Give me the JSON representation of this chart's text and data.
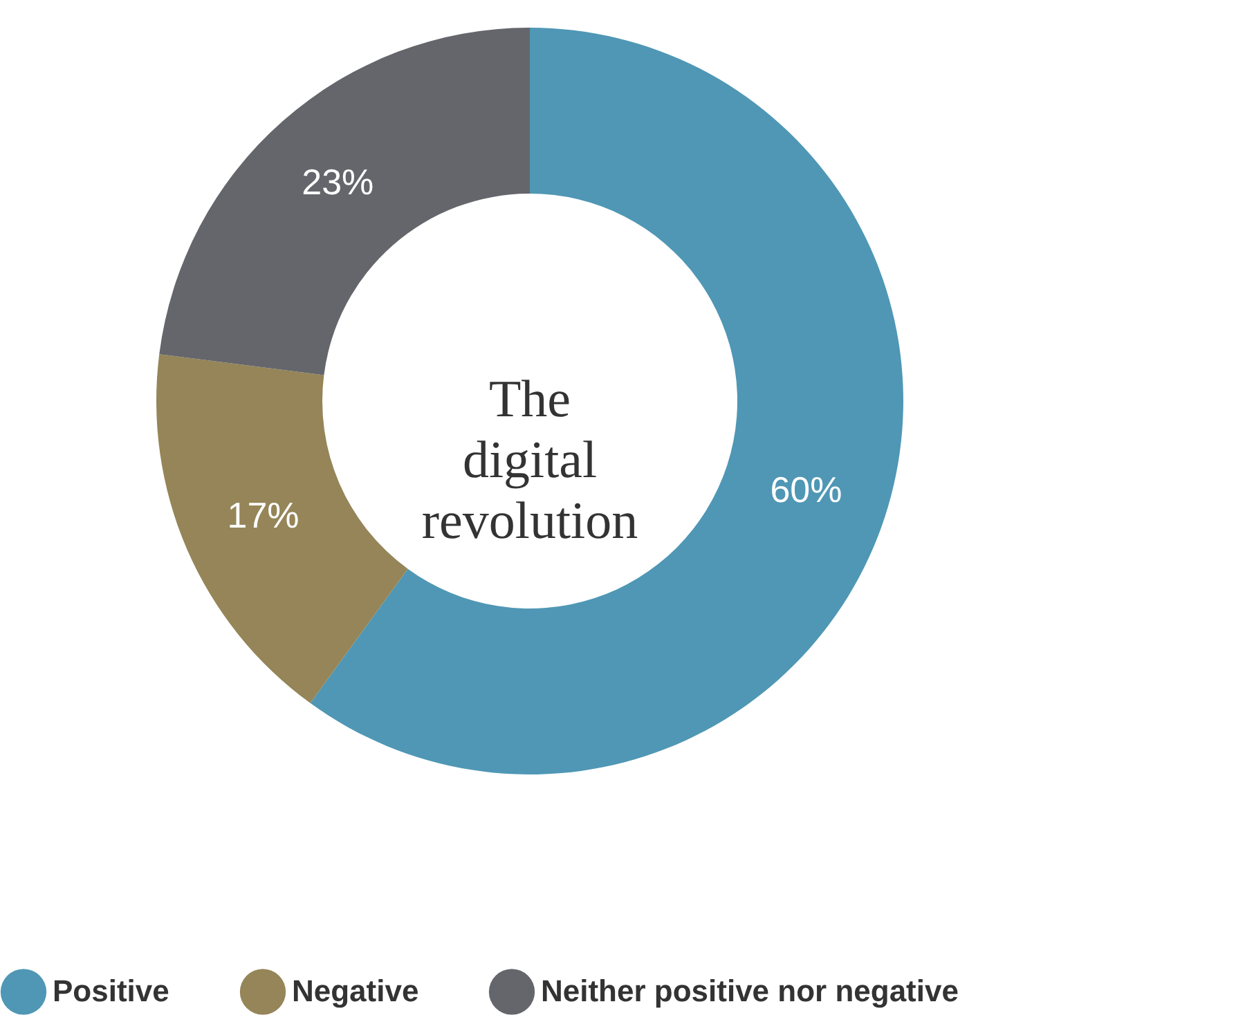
{
  "chart_data": {
    "type": "donut",
    "title": "The digital revolution",
    "categories": [
      "Positive",
      "Negative",
      "Neither positive nor negative"
    ],
    "values": [
      60,
      17,
      23
    ],
    "colors": [
      "#4f97b5",
      "#958558",
      "#64666b"
    ],
    "value_labels": [
      "60%",
      "17%",
      "23%"
    ],
    "legend": "bottom"
  }
}
